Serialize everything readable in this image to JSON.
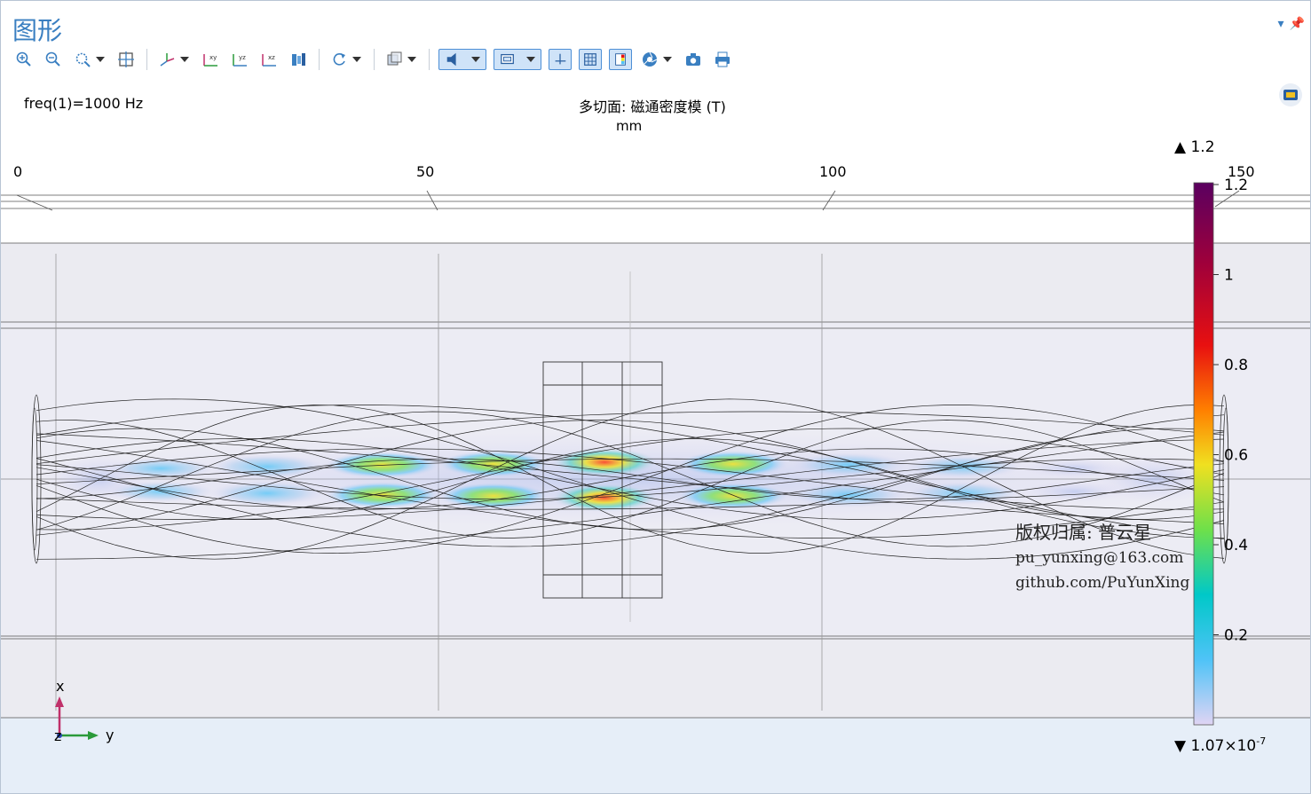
{
  "window": {
    "title": "图形"
  },
  "toolbar": {
    "items": [
      "zoom-in-icon",
      "zoom-out-icon",
      "zoom-box-icon",
      "zoom-extents-icon",
      "axis-orientation-icon",
      "view-xy-icon",
      "view-yz-icon",
      "view-xz-icon",
      "render-icon",
      "rotate-icon",
      "transparency-icon",
      "lighting-icon",
      "scene-icon",
      "grid-icon",
      "colorbar-icon",
      "camera-icon",
      "screenshot-icon",
      "print-icon"
    ]
  },
  "plot": {
    "freq_label": "freq(1)=1000 Hz",
    "title": "多切面: 磁通密度模 (T)",
    "unit": "mm",
    "axis_ticks": [
      "0",
      "50",
      "100",
      "150"
    ],
    "triad": {
      "x": "x",
      "y": "y",
      "z": "z"
    }
  },
  "colorbar": {
    "max_label": "▲ 1.2",
    "min_label": "▼ 1.07×10",
    "min_exponent": "-7",
    "ticks": [
      "1.2",
      "1",
      "0.8",
      "0.6",
      "0.4",
      "0.2"
    ],
    "range": [
      1.07e-07,
      1.2
    ],
    "colors": [
      "#d8c8f0",
      "#4fc3f7",
      "#00c8c8",
      "#6ee04a",
      "#f0e020",
      "#ff8000",
      "#e81010",
      "#a0003a",
      "#5a0060"
    ]
  },
  "watermark": {
    "line1": "版权归属: 普云星",
    "line2": "pu_yunxing@163.com",
    "line3": "github.com/PuYunXing"
  },
  "colors": {
    "accent": "#3a7fc1",
    "plot_bg": "#ebebf2",
    "band_bg": "#e4eaf2"
  }
}
